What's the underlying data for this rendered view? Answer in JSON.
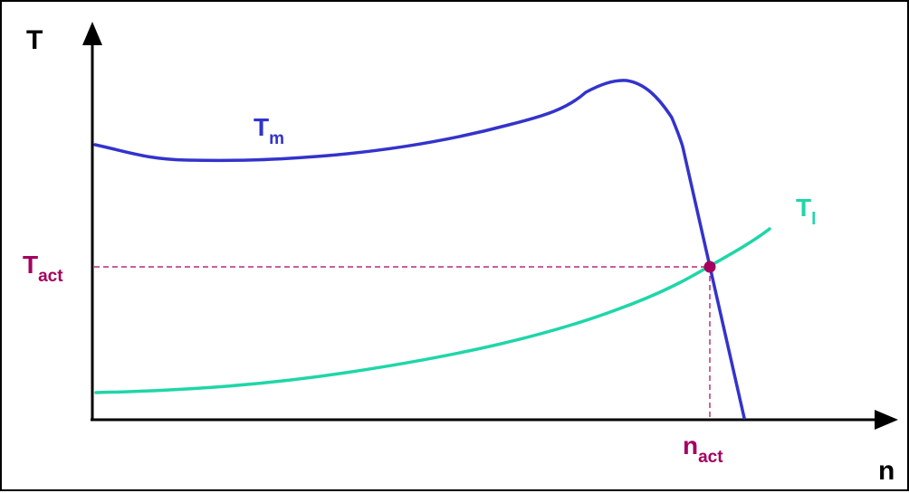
{
  "labels": {
    "y_axis": "T",
    "x_axis": "n",
    "motor_main": "T",
    "motor_sub": "m",
    "load_main": "T",
    "load_sub": "l",
    "tact_main": "T",
    "tact_sub": "act",
    "nact_main": "n",
    "nact_sub": "act"
  },
  "colors": {
    "axis": "#000000",
    "motor_curve": "#3333cc",
    "load_curve": "#1fd6a8",
    "operating_point": "#a3005f",
    "guide_lines": "#a3005f"
  }
}
